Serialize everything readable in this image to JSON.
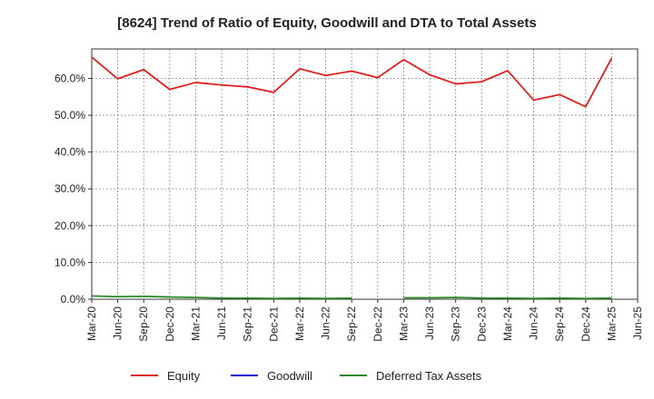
{
  "chart_data": {
    "type": "line",
    "title": "[8624]  Trend of Ratio of Equity, Goodwill and DTA to Total Assets",
    "xlabel": "",
    "ylabel": "",
    "ylim": [
      0,
      68
    ],
    "y_ticks": [
      0,
      10,
      20,
      30,
      40,
      50,
      60
    ],
    "y_tick_labels": [
      "0.0%",
      "10.0%",
      "20.0%",
      "30.0%",
      "40.0%",
      "50.0%",
      "60.0%"
    ],
    "x_range": [
      "Mar-20",
      "Jun-25"
    ],
    "x_tick_labels": [
      "Mar-20",
      "Jun-20",
      "Sep-20",
      "Dec-20",
      "Mar-21",
      "Jun-21",
      "Sep-21",
      "Dec-21",
      "Mar-22",
      "Jun-22",
      "Sep-22",
      "Dec-22",
      "Mar-23",
      "Jun-23",
      "Sep-23",
      "Dec-23",
      "Mar-24",
      "Jun-24",
      "Sep-24",
      "Dec-24",
      "Mar-25",
      "Jun-25"
    ],
    "grid": true,
    "legend_position": "bottom",
    "x": [
      "Mar-20",
      "Jun-20",
      "Sep-20",
      "Dec-20",
      "Mar-21",
      "Jun-21",
      "Sep-21",
      "Dec-21",
      "Mar-22",
      "Jun-22",
      "Sep-22",
      "Dec-22",
      "Mar-23",
      "Jun-23",
      "Sep-23",
      "Dec-23",
      "Mar-24",
      "Jun-24",
      "Sep-24",
      "Dec-24",
      "Mar-25"
    ],
    "series": [
      {
        "name": "Equity",
        "color": "#e02020",
        "values": [
          65.8,
          59.9,
          62.4,
          57.0,
          58.9,
          58.2,
          57.7,
          56.2,
          62.6,
          60.8,
          62.0,
          60.2,
          65.1,
          61.0,
          58.5,
          59.1,
          62.1,
          54.1,
          55.6,
          52.3,
          65.5
        ]
      },
      {
        "name": "Goodwill",
        "color": "#1010d0",
        "values": [
          null,
          null,
          null,
          null,
          null,
          null,
          null,
          null,
          null,
          null,
          null,
          null,
          null,
          null,
          null,
          null,
          null,
          null,
          null,
          null,
          null
        ]
      },
      {
        "name": "Deferred Tax Assets",
        "color": "#2a8a2a",
        "values": [
          0.9,
          0.7,
          0.8,
          0.6,
          0.5,
          0.3,
          0.3,
          0.2,
          0.3,
          0.2,
          0.3,
          null,
          0.4,
          0.4,
          0.5,
          0.3,
          0.3,
          0.2,
          0.3,
          0.2,
          0.3
        ]
      }
    ]
  }
}
